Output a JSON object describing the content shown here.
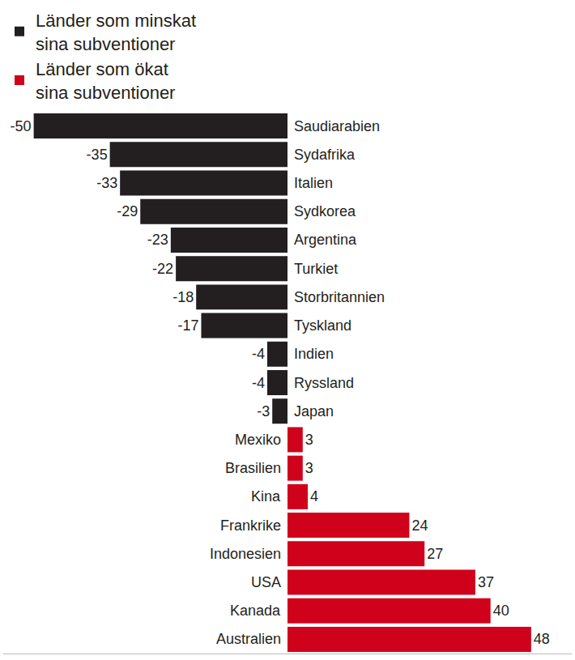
{
  "chart_data": {
    "type": "bar",
    "orientation": "horizontal",
    "categories": [
      "Saudiarabien",
      "Sydafrika",
      "Italien",
      "Sydkorea",
      "Argentina",
      "Turkiet",
      "Storbritannien",
      "Tyskland",
      "Indien",
      "Ryssland",
      "Japan",
      "Mexiko",
      "Brasilien",
      "Kina",
      "Frankrike",
      "Indonesien",
      "USA",
      "Kanada",
      "Australien"
    ],
    "series": [
      {
        "name": "Länder som minskat sina subventioner",
        "color": "#231f20",
        "values": [
          -50,
          -35,
          -33,
          -29,
          -23,
          -22,
          -18,
          -17,
          -4,
          -4,
          -3,
          null,
          null,
          null,
          null,
          null,
          null,
          null,
          null
        ]
      },
      {
        "name": "Länder som ökat sina subventioner",
        "color": "#d0021b",
        "values": [
          null,
          null,
          null,
          null,
          null,
          null,
          null,
          null,
          null,
          null,
          null,
          3,
          3,
          4,
          24,
          27,
          37,
          40,
          48
        ]
      }
    ],
    "xlim": [
      -56,
      56
    ],
    "data_labels": true,
    "tick_labels": false,
    "grid": false,
    "legend": "top-left"
  }
}
